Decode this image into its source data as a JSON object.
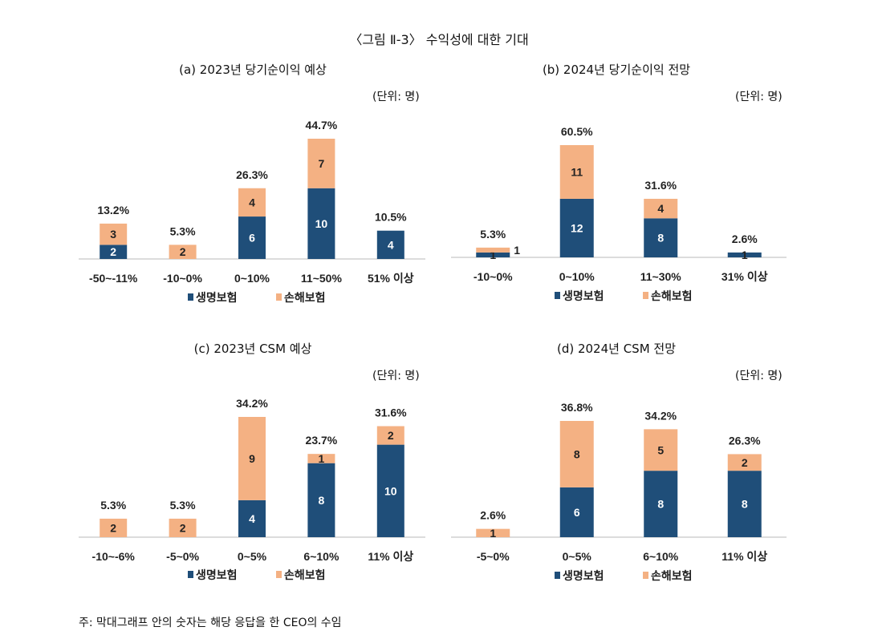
{
  "figure_title": "〈그림 Ⅱ-3〉 수익성에 대한 기대",
  "note": "주: 막대그래프 안의 숫자는 해당 응답을 한 CEO의 수임",
  "colors": {
    "life": "#1f4e79",
    "nonlife": "#f4b183"
  },
  "chart_data": [
    {
      "type": "bar",
      "stacked": true,
      "title": "(a) 2023년 당기순이익 예상",
      "unit": "(단위: 명)",
      "categories": [
        "-50~-11%",
        "-10~0%",
        "0~10%",
        "11~50%",
        "51% 이상"
      ],
      "series": [
        {
          "name": "생명보험",
          "values": [
            2,
            0,
            6,
            10,
            4
          ]
        },
        {
          "name": "손해보험",
          "values": [
            3,
            2,
            4,
            7,
            0
          ]
        }
      ],
      "totals_pct": [
        "13.2%",
        "5.3%",
        "26.3%",
        "44.7%",
        "10.5%"
      ],
      "legend": "bottom"
    },
    {
      "type": "bar",
      "stacked": true,
      "title": "(b) 2024년 당기순이익 전망",
      "unit": "(단위: 명)",
      "categories": [
        "-10~0%",
        "0~10%",
        "11~30%",
        "31% 이상"
      ],
      "series": [
        {
          "name": "생명보험",
          "values": [
            1,
            12,
            8,
            1
          ]
        },
        {
          "name": "손해보험",
          "values": [
            1,
            11,
            4,
            0
          ]
        }
      ],
      "totals_pct": [
        "5.3%",
        "60.5%",
        "31.6%",
        "2.6%"
      ],
      "legend": "bottom"
    },
    {
      "type": "bar",
      "stacked": true,
      "title": "(c) 2023년 CSM 예상",
      "unit": "(단위: 명)",
      "categories": [
        "-10~-6%",
        "-5~0%",
        "0~5%",
        "6~10%",
        "11% 이상"
      ],
      "series": [
        {
          "name": "생명보험",
          "values": [
            0,
            0,
            4,
            8,
            10
          ]
        },
        {
          "name": "손해보험",
          "values": [
            2,
            2,
            9,
            1,
            2
          ]
        }
      ],
      "totals_pct": [
        "5.3%",
        "5.3%",
        "34.2%",
        "23.7%",
        "31.6%"
      ],
      "legend": "bottom"
    },
    {
      "type": "bar",
      "stacked": true,
      "title": "(d) 2024년 CSM 전망",
      "unit": "(단위: 명)",
      "categories": [
        "-5~0%",
        "0~5%",
        "6~10%",
        "11% 이상"
      ],
      "series": [
        {
          "name": "생명보험",
          "values": [
            0,
            6,
            8,
            8
          ]
        },
        {
          "name": "손해보험",
          "values": [
            1,
            8,
            5,
            2
          ]
        }
      ],
      "totals_pct": [
        "2.6%",
        "36.8%",
        "34.2%",
        "26.3%"
      ],
      "legend": "bottom"
    }
  ]
}
